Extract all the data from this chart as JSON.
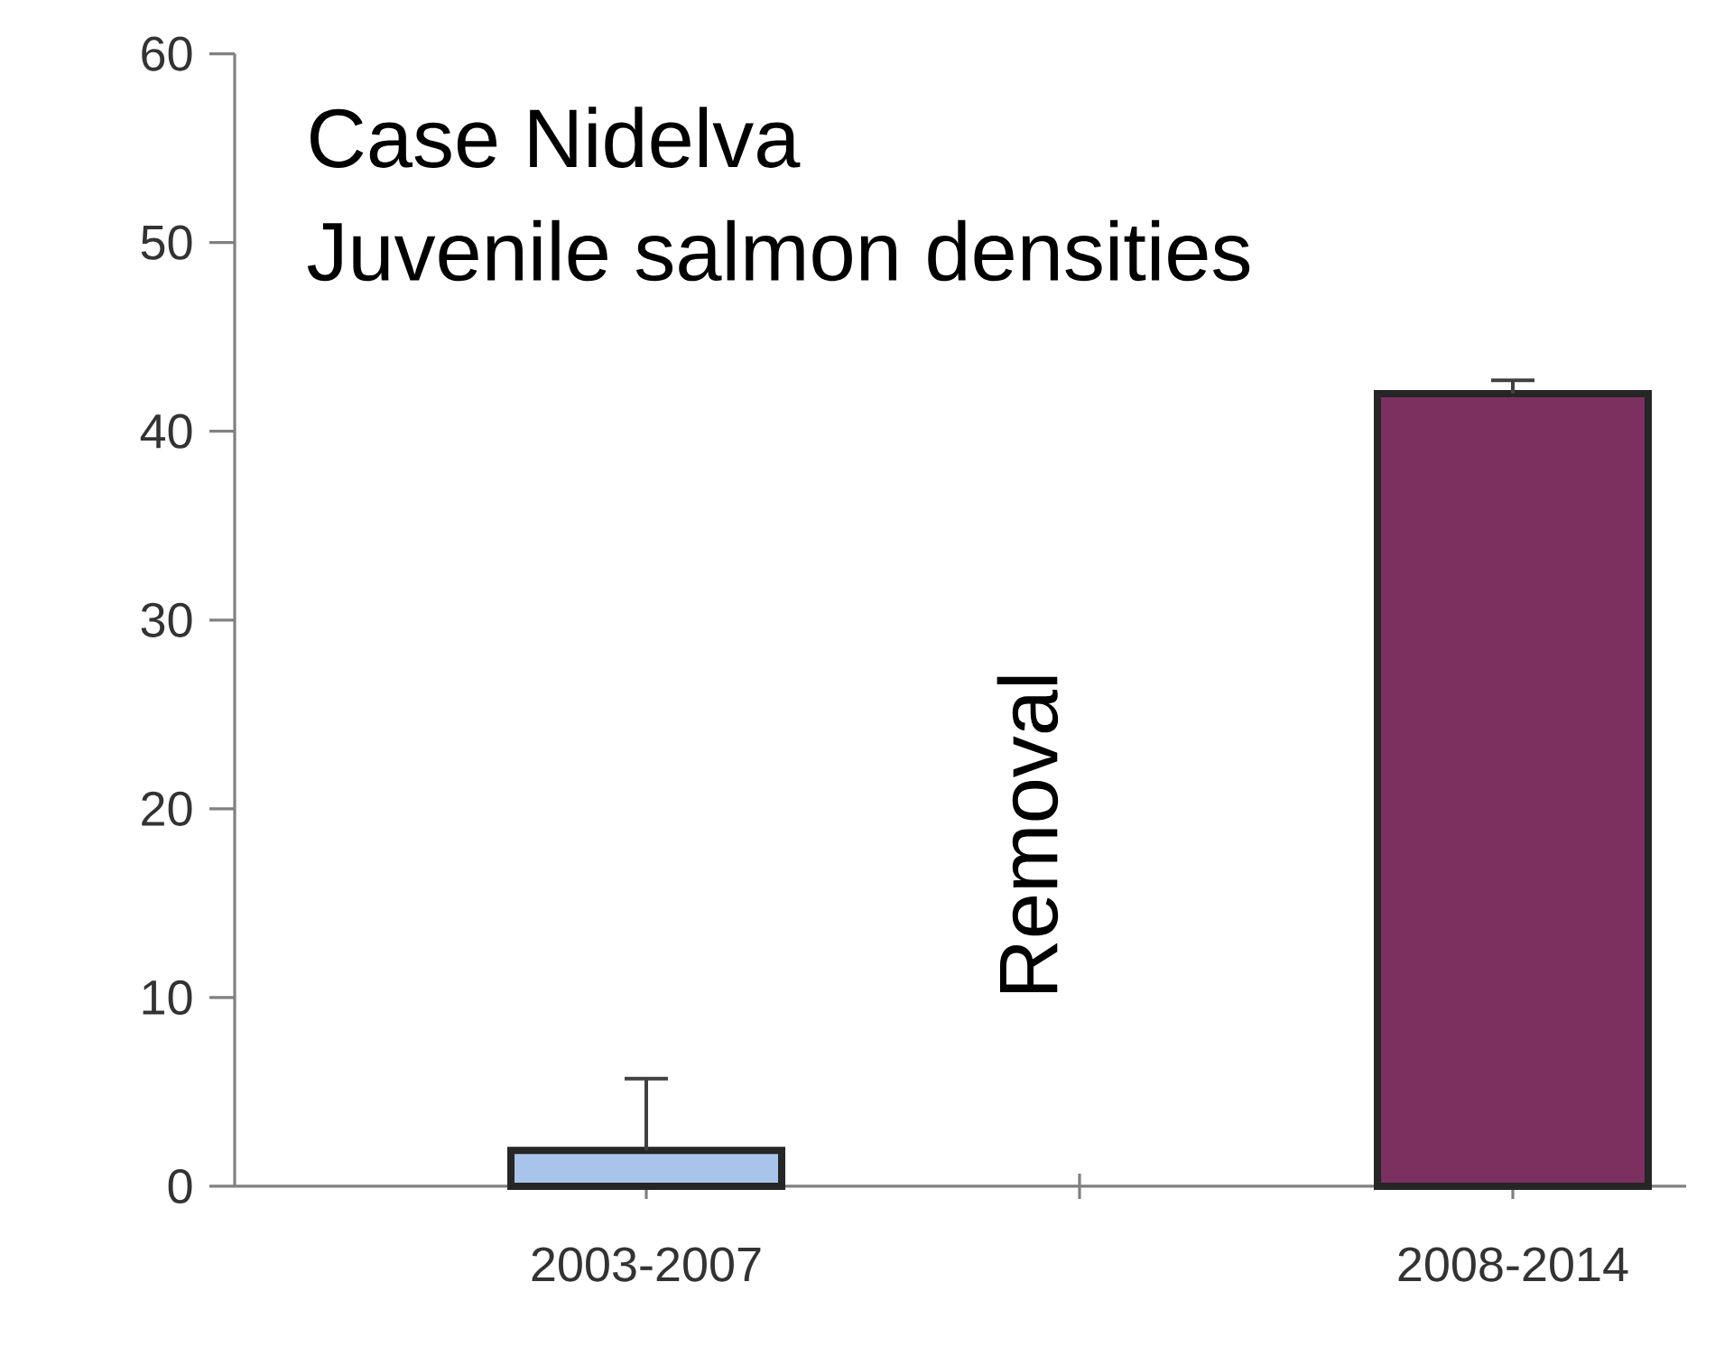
{
  "chart_data": {
    "type": "bar",
    "title": "Case Nidelva",
    "subtitle": "Juvenile salmon densities",
    "categories": [
      "2003-2007",
      "2008-2014"
    ],
    "values": [
      1.9,
      42
    ],
    "colors": [
      "#a9c4eb",
      "#7b3060"
    ],
    "errors": [
      [
        1.9,
        5.7
      ],
      [
        42,
        42.7
      ]
    ],
    "ylim": [
      0,
      60
    ],
    "yticks": [
      0,
      10,
      20,
      30,
      40,
      50,
      60
    ],
    "annotations": [
      "Removal"
    ],
    "grid": false
  }
}
